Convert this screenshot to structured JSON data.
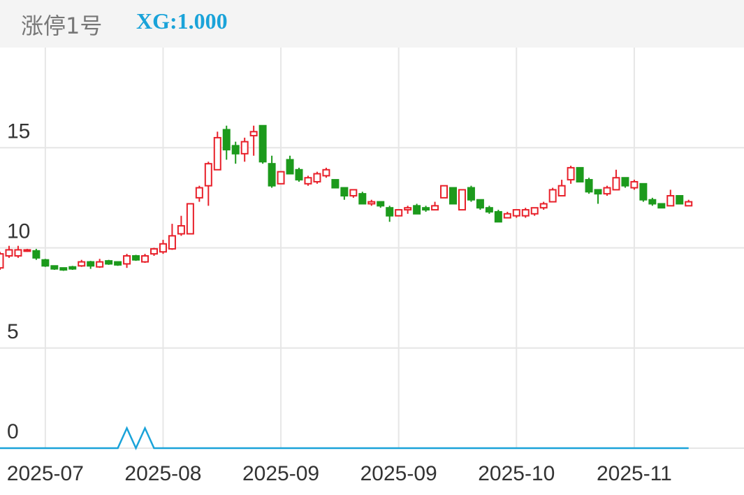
{
  "header": {
    "indicator_name": "涨停1号",
    "indicator_value": "XG:1.000"
  },
  "chart_data": {
    "type": "candlestick",
    "categories": [
      null,
      null,
      null,
      null,
      null,
      null,
      null,
      null,
      null,
      null,
      null,
      null,
      null,
      null,
      null,
      null,
      null,
      null,
      null,
      null,
      null,
      null,
      null,
      null,
      null,
      null,
      null,
      null,
      null,
      null,
      null,
      null,
      null,
      null,
      null,
      null,
      null,
      null,
      null,
      null,
      null,
      null,
      null,
      null,
      null,
      null,
      null,
      null,
      null,
      null,
      null,
      null,
      null,
      null,
      null,
      null,
      null,
      null,
      null,
      null,
      null,
      null,
      null,
      null,
      null,
      null,
      null,
      null,
      null,
      null,
      null,
      null,
      null,
      null,
      null,
      null,
      null
    ],
    "open": [
      9.0,
      9.6,
      9.6,
      9.85,
      9.85,
      9.4,
      9.1,
      9.0,
      9.05,
      9.1,
      9.3,
      9.05,
      9.35,
      9.3,
      9.2,
      9.6,
      9.3,
      9.7,
      9.8,
      9.95,
      10.7,
      10.7,
      12.5,
      13.1,
      13.9,
      15.9,
      15.1,
      14.7,
      15.6,
      16.1,
      14.2,
      13.2,
      14.4,
      13.9,
      13.2,
      13.3,
      13.6,
      13.4,
      13.0,
      12.6,
      12.7,
      12.2,
      12.3,
      12.0,
      11.6,
      11.9,
      12.1,
      12.0,
      11.9,
      12.5,
      13.0,
      11.9,
      13.0,
      12.4,
      12.0,
      11.8,
      11.5,
      11.6,
      11.6,
      11.7,
      12.0,
      12.3,
      12.6,
      13.4,
      14.0,
      13.4,
      12.9,
      12.7,
      12.9,
      13.5,
      13.0,
      13.2,
      12.4,
      12.2,
      12.1,
      12.6,
      12.1
    ],
    "high": [
      9.8,
      10.1,
      10.1,
      9.95,
      9.95,
      9.45,
      9.1,
      9.0,
      9.1,
      9.4,
      9.35,
      9.45,
      9.4,
      9.3,
      9.7,
      9.65,
      9.7,
      10.0,
      10.4,
      11.2,
      11.6,
      12.2,
      13.1,
      14.3,
      15.8,
      16.1,
      15.3,
      15.5,
      16.1,
      16.1,
      14.6,
      13.8,
      14.6,
      14.0,
      13.6,
      13.8,
      14.0,
      13.4,
      13.0,
      12.9,
      12.8,
      12.4,
      12.3,
      12.1,
      11.9,
      12.1,
      12.2,
      12.1,
      12.3,
      13.1,
      13.0,
      12.9,
      13.1,
      12.4,
      12.1,
      11.9,
      11.8,
      11.9,
      12.0,
      12.0,
      12.3,
      13.0,
      13.4,
      14.1,
      14.0,
      13.5,
      12.9,
      13.1,
      13.9,
      13.5,
      13.4,
      13.2,
      12.5,
      12.2,
      12.9,
      12.6,
      12.4
    ],
    "low": [
      8.9,
      9.5,
      9.5,
      9.8,
      9.4,
      9.05,
      8.9,
      8.85,
      8.9,
      9.05,
      8.95,
      9.0,
      9.15,
      9.1,
      9.0,
      9.35,
      9.25,
      9.6,
      9.7,
      9.9,
      10.6,
      10.7,
      12.3,
      12.1,
      13.9,
      14.4,
      14.2,
      14.3,
      14.6,
      14.2,
      13.0,
      13.2,
      13.7,
      13.3,
      13.1,
      13.2,
      13.5,
      13.0,
      12.4,
      12.5,
      12.2,
      12.1,
      12.0,
      11.3,
      11.6,
      11.7,
      11.7,
      11.8,
      11.9,
      12.5,
      12.2,
      11.9,
      12.3,
      11.9,
      11.7,
      11.3,
      11.5,
      11.5,
      11.5,
      11.6,
      11.9,
      12.3,
      12.6,
      13.2,
      13.3,
      12.7,
      12.2,
      12.6,
      12.9,
      13.0,
      12.9,
      12.3,
      12.1,
      12.0,
      12.1,
      12.2,
      12.1
    ],
    "close": [
      9.7,
      9.9,
      9.9,
      9.9,
      9.5,
      9.1,
      8.95,
      8.9,
      8.95,
      9.3,
      9.1,
      9.3,
      9.2,
      9.15,
      9.6,
      9.4,
      9.6,
      9.95,
      10.2,
      10.6,
      11.1,
      12.2,
      13.0,
      14.2,
      15.5,
      14.9,
      14.7,
      15.3,
      15.8,
      14.3,
      13.1,
      13.8,
      13.7,
      13.4,
      13.5,
      13.7,
      13.9,
      13.0,
      12.6,
      12.9,
      12.2,
      12.3,
      12.1,
      11.6,
      11.9,
      12.0,
      11.7,
      11.9,
      12.1,
      13.1,
      12.2,
      12.9,
      12.4,
      12.0,
      11.8,
      11.3,
      11.7,
      11.9,
      11.9,
      12.0,
      12.2,
      12.9,
      13.1,
      14.0,
      13.3,
      12.8,
      12.7,
      13.0,
      13.5,
      13.1,
      13.3,
      12.4,
      12.2,
      12.0,
      12.6,
      12.2,
      12.3
    ],
    "up_color": "#e8202a",
    "down_color": "#1c9a1c",
    "overlay": {
      "type": "line",
      "color": "#1aa3d9",
      "values": [
        0,
        0,
        0,
        0,
        0,
        0,
        0,
        0,
        0,
        0,
        0,
        0,
        0,
        0,
        1,
        0,
        1,
        0,
        0,
        0,
        0,
        0,
        0,
        0,
        0,
        0,
        0,
        0,
        0,
        0,
        0,
        0,
        0,
        0,
        0,
        0,
        0,
        0,
        0,
        0,
        0,
        0,
        0,
        0,
        0,
        0,
        0,
        0,
        0,
        0,
        0,
        0,
        0,
        0,
        0,
        0,
        0,
        0,
        0,
        0,
        0,
        0,
        0,
        0,
        0,
        0,
        0,
        0,
        0,
        0,
        0,
        0,
        0,
        0,
        0,
        0,
        0
      ]
    },
    "ylim": [
      0,
      20
    ],
    "yticks": [
      0,
      5,
      10,
      15
    ],
    "xticks": [
      {
        "value": 5,
        "label": "2025-07"
      },
      {
        "value": 18,
        "label": "2025-08"
      },
      {
        "value": 31,
        "label": "2025-09"
      },
      {
        "value": 44,
        "label": "2025-09"
      },
      {
        "value": 57,
        "label": "2025-10"
      },
      {
        "value": 70,
        "label": "2025-11"
      }
    ],
    "grid": true
  }
}
